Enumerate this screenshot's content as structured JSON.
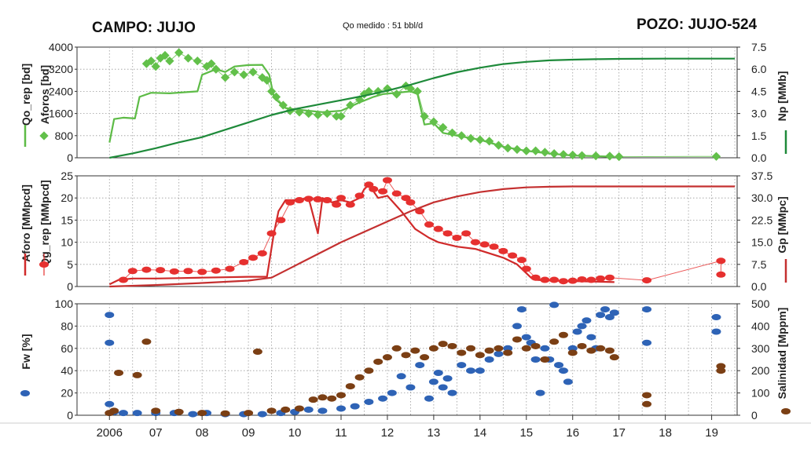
{
  "header": {
    "campo": "CAMPO: JUJO",
    "qo_medido": "Qo medido : 51 bbl/d",
    "pozo": "POZO: JUJO-524"
  },
  "chart_data": [
    {
      "type": "line",
      "panel": "oil",
      "left_labels": [
        "Qo_rep [bd]",
        "Aforos [bd]"
      ],
      "right_label": "Np [MMb]",
      "ylim_left": [
        0,
        4000
      ],
      "ylim_right": [
        0,
        7.5
      ],
      "yticks_left": [
        "0",
        "800",
        "1600",
        "2400",
        "3200",
        "4000"
      ],
      "yticks_right": [
        "0.0",
        "1.5",
        "3.0",
        "4.5",
        "6.0",
        "7.5"
      ],
      "colors": {
        "qo_rep": "#5dbb46",
        "aforos": "#62c04a",
        "np": "#1e8a3a"
      },
      "series": [
        {
          "key": "qo_rep",
          "axis": "left",
          "style": "line",
          "x": [
            2006.0,
            2006.1,
            2006.3,
            2006.55,
            2006.65,
            2006.9,
            2007.3,
            2007.9,
            2008.0,
            2008.3,
            2008.5,
            2008.7,
            2009.0,
            2009.3,
            2009.45,
            2009.55,
            2009.6,
            2009.8,
            2010.0,
            2010.3,
            2010.6,
            2011.0,
            2011.4,
            2011.7,
            2011.9,
            2012.2,
            2012.5,
            2012.65,
            2012.8,
            2013.0,
            2013.2,
            2013.5,
            2014.0,
            2014.5,
            2015.0,
            2015.5,
            2016.0,
            2016.5,
            2016.9
          ],
          "y": [
            550,
            1400,
            1450,
            1420,
            2200,
            2350,
            2330,
            2400,
            3000,
            3200,
            3100,
            3300,
            3350,
            3360,
            3000,
            2200,
            2100,
            1800,
            1750,
            1700,
            1650,
            1700,
            2000,
            2200,
            2300,
            2350,
            2400,
            2300,
            1200,
            1250,
            900,
            800,
            650,
            400,
            250,
            150,
            80,
            60,
            30
          ]
        },
        {
          "key": "aforos",
          "axis": "left",
          "style": "markers",
          "x": [
            2006.8,
            2006.9,
            2007.0,
            2007.1,
            2007.2,
            2007.3,
            2007.5,
            2007.7,
            2007.9,
            2008.1,
            2008.2,
            2008.3,
            2008.5,
            2008.7,
            2008.9,
            2009.1,
            2009.3,
            2009.4,
            2009.5,
            2009.6,
            2009.75,
            2009.9,
            2010.1,
            2010.3,
            2010.5,
            2010.7,
            2010.9,
            2011.0,
            2011.2,
            2011.4,
            2011.5,
            2011.6,
            2011.8,
            2012.0,
            2012.2,
            2012.4,
            2012.5,
            2012.65,
            2012.8,
            2013.0,
            2013.2,
            2013.4,
            2013.6,
            2013.8,
            2014.0,
            2014.2,
            2014.4,
            2014.6,
            2014.8,
            2015.0,
            2015.2,
            2015.4,
            2015.6,
            2015.8,
            2016.0,
            2016.2,
            2016.5,
            2016.8,
            2017.0,
            2019.1
          ],
          "y": [
            3400,
            3500,
            3300,
            3600,
            3700,
            3500,
            3800,
            3600,
            3500,
            3300,
            3400,
            3200,
            2900,
            3100,
            3000,
            3100,
            2900,
            2800,
            2400,
            2200,
            1900,
            1700,
            1650,
            1600,
            1550,
            1600,
            1500,
            1500,
            1900,
            2100,
            2300,
            2400,
            2400,
            2500,
            2300,
            2600,
            2500,
            2400,
            1500,
            1300,
            1100,
            900,
            800,
            700,
            650,
            600,
            450,
            350,
            300,
            250,
            250,
            200,
            150,
            120,
            100,
            80,
            70,
            60,
            40,
            50
          ]
        },
        {
          "key": "np",
          "axis": "right",
          "style": "line",
          "x": [
            2006.0,
            2006.5,
            2007.0,
            2007.5,
            2008.0,
            2008.5,
            2009.0,
            2009.5,
            2010.0,
            2010.5,
            2011.0,
            2011.5,
            2012.0,
            2012.5,
            2013.0,
            2013.5,
            2014.0,
            2014.5,
            2015.0,
            2015.5,
            2016.0,
            2016.5,
            2017.0,
            2018.0,
            2019.0,
            2019.5
          ],
          "y": [
            0.0,
            0.3,
            0.65,
            1.05,
            1.4,
            1.9,
            2.4,
            2.9,
            3.3,
            3.6,
            3.9,
            4.2,
            4.55,
            4.95,
            5.4,
            5.8,
            6.1,
            6.35,
            6.5,
            6.6,
            6.65,
            6.68,
            6.7,
            6.72,
            6.72,
            6.72
          ]
        }
      ]
    },
    {
      "type": "line",
      "panel": "gas",
      "left_labels": [
        "Aforo [MMpcd]",
        "Qg_rep [MMpcd]"
      ],
      "right_label": "Gp [MMpc]",
      "ylim_left": [
        0,
        25
      ],
      "ylim_right": [
        0,
        37.5
      ],
      "yticks_left": [
        "0",
        "5",
        "10",
        "15",
        "20",
        "25"
      ],
      "yticks_right": [
        "0.0",
        "7.5",
        "15.0",
        "22.5",
        "30.0",
        "37.5"
      ],
      "colors": {
        "aforo": "#e6302f",
        "qg_rep": "#d02a2a",
        "gp": "#c43030"
      },
      "series": [
        {
          "key": "qg_rep",
          "axis": "left",
          "style": "line",
          "x": [
            2006.0,
            2006.2,
            2006.5,
            2007.0,
            2007.5,
            2008.0,
            2008.5,
            2009.0,
            2009.4,
            2009.55,
            2009.65,
            2009.8,
            2010.0,
            2010.3,
            2010.5,
            2010.6,
            2010.8,
            2011.0,
            2011.2,
            2011.4,
            2011.5,
            2011.6,
            2011.8,
            2012.0,
            2012.3,
            2012.6,
            2012.9,
            2013.1,
            2013.5,
            2013.9,
            2014.2,
            2014.5,
            2014.8,
            2015.0,
            2015.1,
            2015.2,
            2015.6,
            2016.0,
            2016.5,
            2016.9
          ],
          "y": [
            0.5,
            1.5,
            1.8,
            1.8,
            1.9,
            2.0,
            2.1,
            2.2,
            2.2,
            12,
            17,
            19.5,
            19.5,
            20,
            12,
            20,
            19,
            19.5,
            19,
            20,
            22,
            23,
            20,
            20.5,
            17,
            13,
            11,
            10,
            9,
            8.5,
            7.5,
            6.5,
            5,
            3,
            2,
            1.5,
            1.3,
            1.2,
            1.1,
            1.0
          ]
        },
        {
          "key": "aforo",
          "axis": "left",
          "style": "markers",
          "x": [
            2006.3,
            2006.5,
            2006.8,
            2007.1,
            2007.4,
            2007.7,
            2008.0,
            2008.3,
            2008.6,
            2008.9,
            2009.1,
            2009.3,
            2009.5,
            2009.7,
            2009.9,
            2010.1,
            2010.3,
            2010.5,
            2010.7,
            2010.9,
            2011.0,
            2011.2,
            2011.4,
            2011.6,
            2011.7,
            2011.9,
            2012.0,
            2012.2,
            2012.4,
            2012.5,
            2012.7,
            2012.9,
            2013.1,
            2013.3,
            2013.5,
            2013.7,
            2013.9,
            2014.1,
            2014.3,
            2014.5,
            2014.7,
            2014.9,
            2015.0,
            2015.2,
            2015.4,
            2015.6,
            2015.8,
            2016.0,
            2016.2,
            2016.4,
            2016.6,
            2016.8,
            2017.6,
            2019.2,
            2019.2
          ],
          "y": [
            1.5,
            3.5,
            3.8,
            3.7,
            3.4,
            3.5,
            3.3,
            3.6,
            4.0,
            5.5,
            6.5,
            7.5,
            12,
            15,
            19,
            19.5,
            19.8,
            19.7,
            19.5,
            18.5,
            20,
            18.5,
            20.5,
            23,
            22,
            21.5,
            24,
            21,
            20,
            19,
            17,
            14,
            13,
            12,
            11,
            12,
            10,
            9.5,
            9,
            8,
            7,
            6,
            4,
            2,
            1.5,
            1.5,
            1.2,
            1.3,
            1.6,
            1.5,
            1.8,
            2.0,
            1.4,
            5.8,
            2.7
          ]
        },
        {
          "key": "gp",
          "axis": "right",
          "style": "line",
          "x": [
            2006.0,
            2007.0,
            2008.0,
            2009.0,
            2009.5,
            2010.0,
            2010.5,
            2011.0,
            2011.5,
            2012.0,
            2012.5,
            2013.0,
            2013.5,
            2014.0,
            2014.5,
            2015.0,
            2015.5,
            2016.0,
            2017.0,
            2018.0,
            2019.0,
            2019.5
          ],
          "y": [
            0.0,
            0.5,
            1.2,
            2.0,
            3.0,
            7.0,
            11.0,
            15.0,
            18.5,
            22.0,
            25.5,
            28.5,
            30.5,
            32.0,
            33.0,
            33.6,
            33.8,
            33.9,
            33.9,
            33.9,
            33.9,
            33.9
          ]
        }
      ]
    },
    {
      "type": "scatter",
      "panel": "water",
      "left_labels": [
        "Fw [%]"
      ],
      "right_label": "Salinidad [Mppm]",
      "ylim_left": [
        0,
        100
      ],
      "ylim_right": [
        0,
        500
      ],
      "yticks_left": [
        "0",
        "20",
        "40",
        "60",
        "80",
        "100"
      ],
      "yticks_right": [
        "0",
        "100",
        "200",
        "300",
        "400",
        "500"
      ],
      "colors": {
        "fw": "#2e63b6",
        "salinidad": "#7b3f14"
      },
      "series": [
        {
          "key": "fw",
          "axis": "left",
          "style": "markers",
          "x": [
            2006.0,
            2006.0,
            2006.0,
            2006.1,
            2006.3,
            2006.6,
            2007.0,
            2007.4,
            2007.8,
            2008.1,
            2008.5,
            2008.9,
            2009.3,
            2009.7,
            2010.0,
            2010.3,
            2010.6,
            2011.0,
            2011.3,
            2011.6,
            2011.9,
            2012.1,
            2012.3,
            2012.5,
            2012.7,
            2012.9,
            2013.0,
            2013.1,
            2013.2,
            2013.3,
            2013.4,
            2013.6,
            2013.8,
            2014.0,
            2014.2,
            2014.4,
            2014.6,
            2014.8,
            2014.9,
            2015.0,
            2015.1,
            2015.2,
            2015.3,
            2015.4,
            2015.5,
            2015.6,
            2015.7,
            2015.8,
            2015.9,
            2016.0,
            2016.1,
            2016.2,
            2016.3,
            2016.4,
            2016.5,
            2016.6,
            2016.7,
            2016.8,
            2016.9,
            2017.6,
            2017.6,
            2019.1,
            2019.1
          ],
          "y": [
            90,
            65,
            10,
            3,
            2,
            2,
            2,
            2,
            1,
            2,
            1,
            1,
            1,
            2,
            3,
            5,
            4,
            6,
            8,
            12,
            15,
            20,
            35,
            25,
            45,
            15,
            30,
            38,
            25,
            33,
            20,
            45,
            40,
            40,
            50,
            55,
            60,
            80,
            95,
            70,
            65,
            50,
            20,
            60,
            50,
            99,
            45,
            40,
            30,
            60,
            75,
            80,
            85,
            70,
            60,
            90,
            95,
            88,
            92,
            95,
            65,
            88,
            75
          ]
        },
        {
          "key": "salinidad",
          "axis": "right",
          "style": "markers",
          "x": [
            2006.0,
            2006.1,
            2006.2,
            2006.6,
            2006.8,
            2007.0,
            2007.5,
            2008.0,
            2008.5,
            2009.0,
            2009.2,
            2009.5,
            2009.8,
            2010.1,
            2010.4,
            2010.6,
            2010.8,
            2011.0,
            2011.2,
            2011.4,
            2011.6,
            2011.8,
            2012.0,
            2012.2,
            2012.4,
            2012.6,
            2012.8,
            2013.0,
            2013.2,
            2013.4,
            2013.6,
            2013.8,
            2014.0,
            2014.2,
            2014.4,
            2014.6,
            2014.8,
            2015.0,
            2015.2,
            2015.4,
            2015.6,
            2015.8,
            2016.0,
            2016.2,
            2016.4,
            2016.6,
            2016.8,
            2016.9,
            2017.6,
            2017.6,
            2019.2,
            2019.2
          ],
          "y": [
            10,
            20,
            190,
            180,
            330,
            20,
            15,
            10,
            8,
            10,
            285,
            20,
            25,
            30,
            70,
            80,
            75,
            90,
            130,
            170,
            200,
            240,
            260,
            300,
            270,
            290,
            260,
            300,
            320,
            310,
            280,
            300,
            270,
            290,
            300,
            280,
            340,
            300,
            310,
            250,
            330,
            360,
            280,
            310,
            290,
            300,
            290,
            260,
            90,
            50,
            200,
            220
          ]
        }
      ]
    }
  ],
  "x_axis": {
    "xlim": [
      2005.3,
      2019.55
    ],
    "labels": [
      "2006",
      "07",
      "08",
      "09",
      "10",
      "11",
      "12",
      "13",
      "14",
      "15",
      "16",
      "17",
      "18",
      "19"
    ],
    "positions": [
      2006,
      2007,
      2008,
      2009,
      2010,
      2011,
      2012,
      2013,
      2014,
      2015,
      2016,
      2017,
      2018,
      2019
    ]
  }
}
